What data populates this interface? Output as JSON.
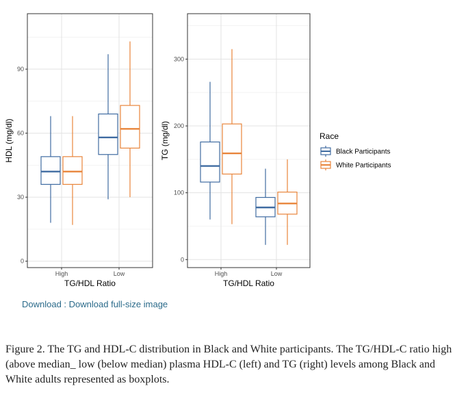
{
  "colors": {
    "black_participants": "#3f6ba1",
    "white_participants": "#e8843a"
  },
  "chart_data": [
    {
      "type": "boxplot",
      "panel": "left",
      "xlabel": "TG/HDL Ratio",
      "ylabel": "HDL (mg/dl)",
      "categories": [
        "High",
        "Low"
      ],
      "ylim": [
        -3,
        116
      ],
      "yticks": [
        0,
        30,
        60,
        90
      ],
      "grid": true,
      "series": [
        {
          "name": "Black Participants",
          "boxes": [
            {
              "min": 18,
              "q1": 36,
              "median": 42,
              "q3": 49,
              "max": 68
            },
            {
              "min": 29,
              "q1": 50,
              "median": 58,
              "q3": 69,
              "max": 97
            }
          ]
        },
        {
          "name": "White Participants",
          "boxes": [
            {
              "min": 17,
              "q1": 36,
              "median": 42,
              "q3": 49,
              "max": 68
            },
            {
              "min": 30,
              "q1": 53,
              "median": 62,
              "q3": 73,
              "max": 103
            }
          ]
        }
      ]
    },
    {
      "type": "boxplot",
      "panel": "right",
      "xlabel": "TG/HDL Ratio",
      "ylabel": "TG (mg/dl)",
      "categories": [
        "High",
        "Low"
      ],
      "ylim": [
        -12,
        368
      ],
      "yticks": [
        0,
        100,
        200,
        300
      ],
      "grid": true,
      "series": [
        {
          "name": "Black Participants",
          "boxes": [
            {
              "min": 60,
              "q1": 116,
              "median": 140,
              "q3": 176,
              "max": 266
            },
            {
              "min": 22,
              "q1": 64,
              "median": 78,
              "q3": 93,
              "max": 136
            }
          ]
        },
        {
          "name": "White Participants",
          "boxes": [
            {
              "min": 53,
              "q1": 128,
              "median": 159,
              "q3": 203,
              "max": 315
            },
            {
              "min": 22,
              "q1": 68,
              "median": 84,
              "q3": 101,
              "max": 150
            }
          ]
        }
      ]
    }
  ],
  "legend": {
    "title": "Race",
    "items": [
      {
        "label": "Black Participants",
        "color": "#3f6ba1"
      },
      {
        "label": "White Participants",
        "color": "#e8843a"
      }
    ]
  },
  "download": {
    "label": "Download : Download full-size image"
  },
  "caption": {
    "text": "Figure 2. The TG and HDL-C distribution in Black and White participants. The TG/HDL-C ratio high (above median_ low (below median) plasma HDL-C (left) and TG (right) levels among Black and White adults represented as boxplots."
  }
}
